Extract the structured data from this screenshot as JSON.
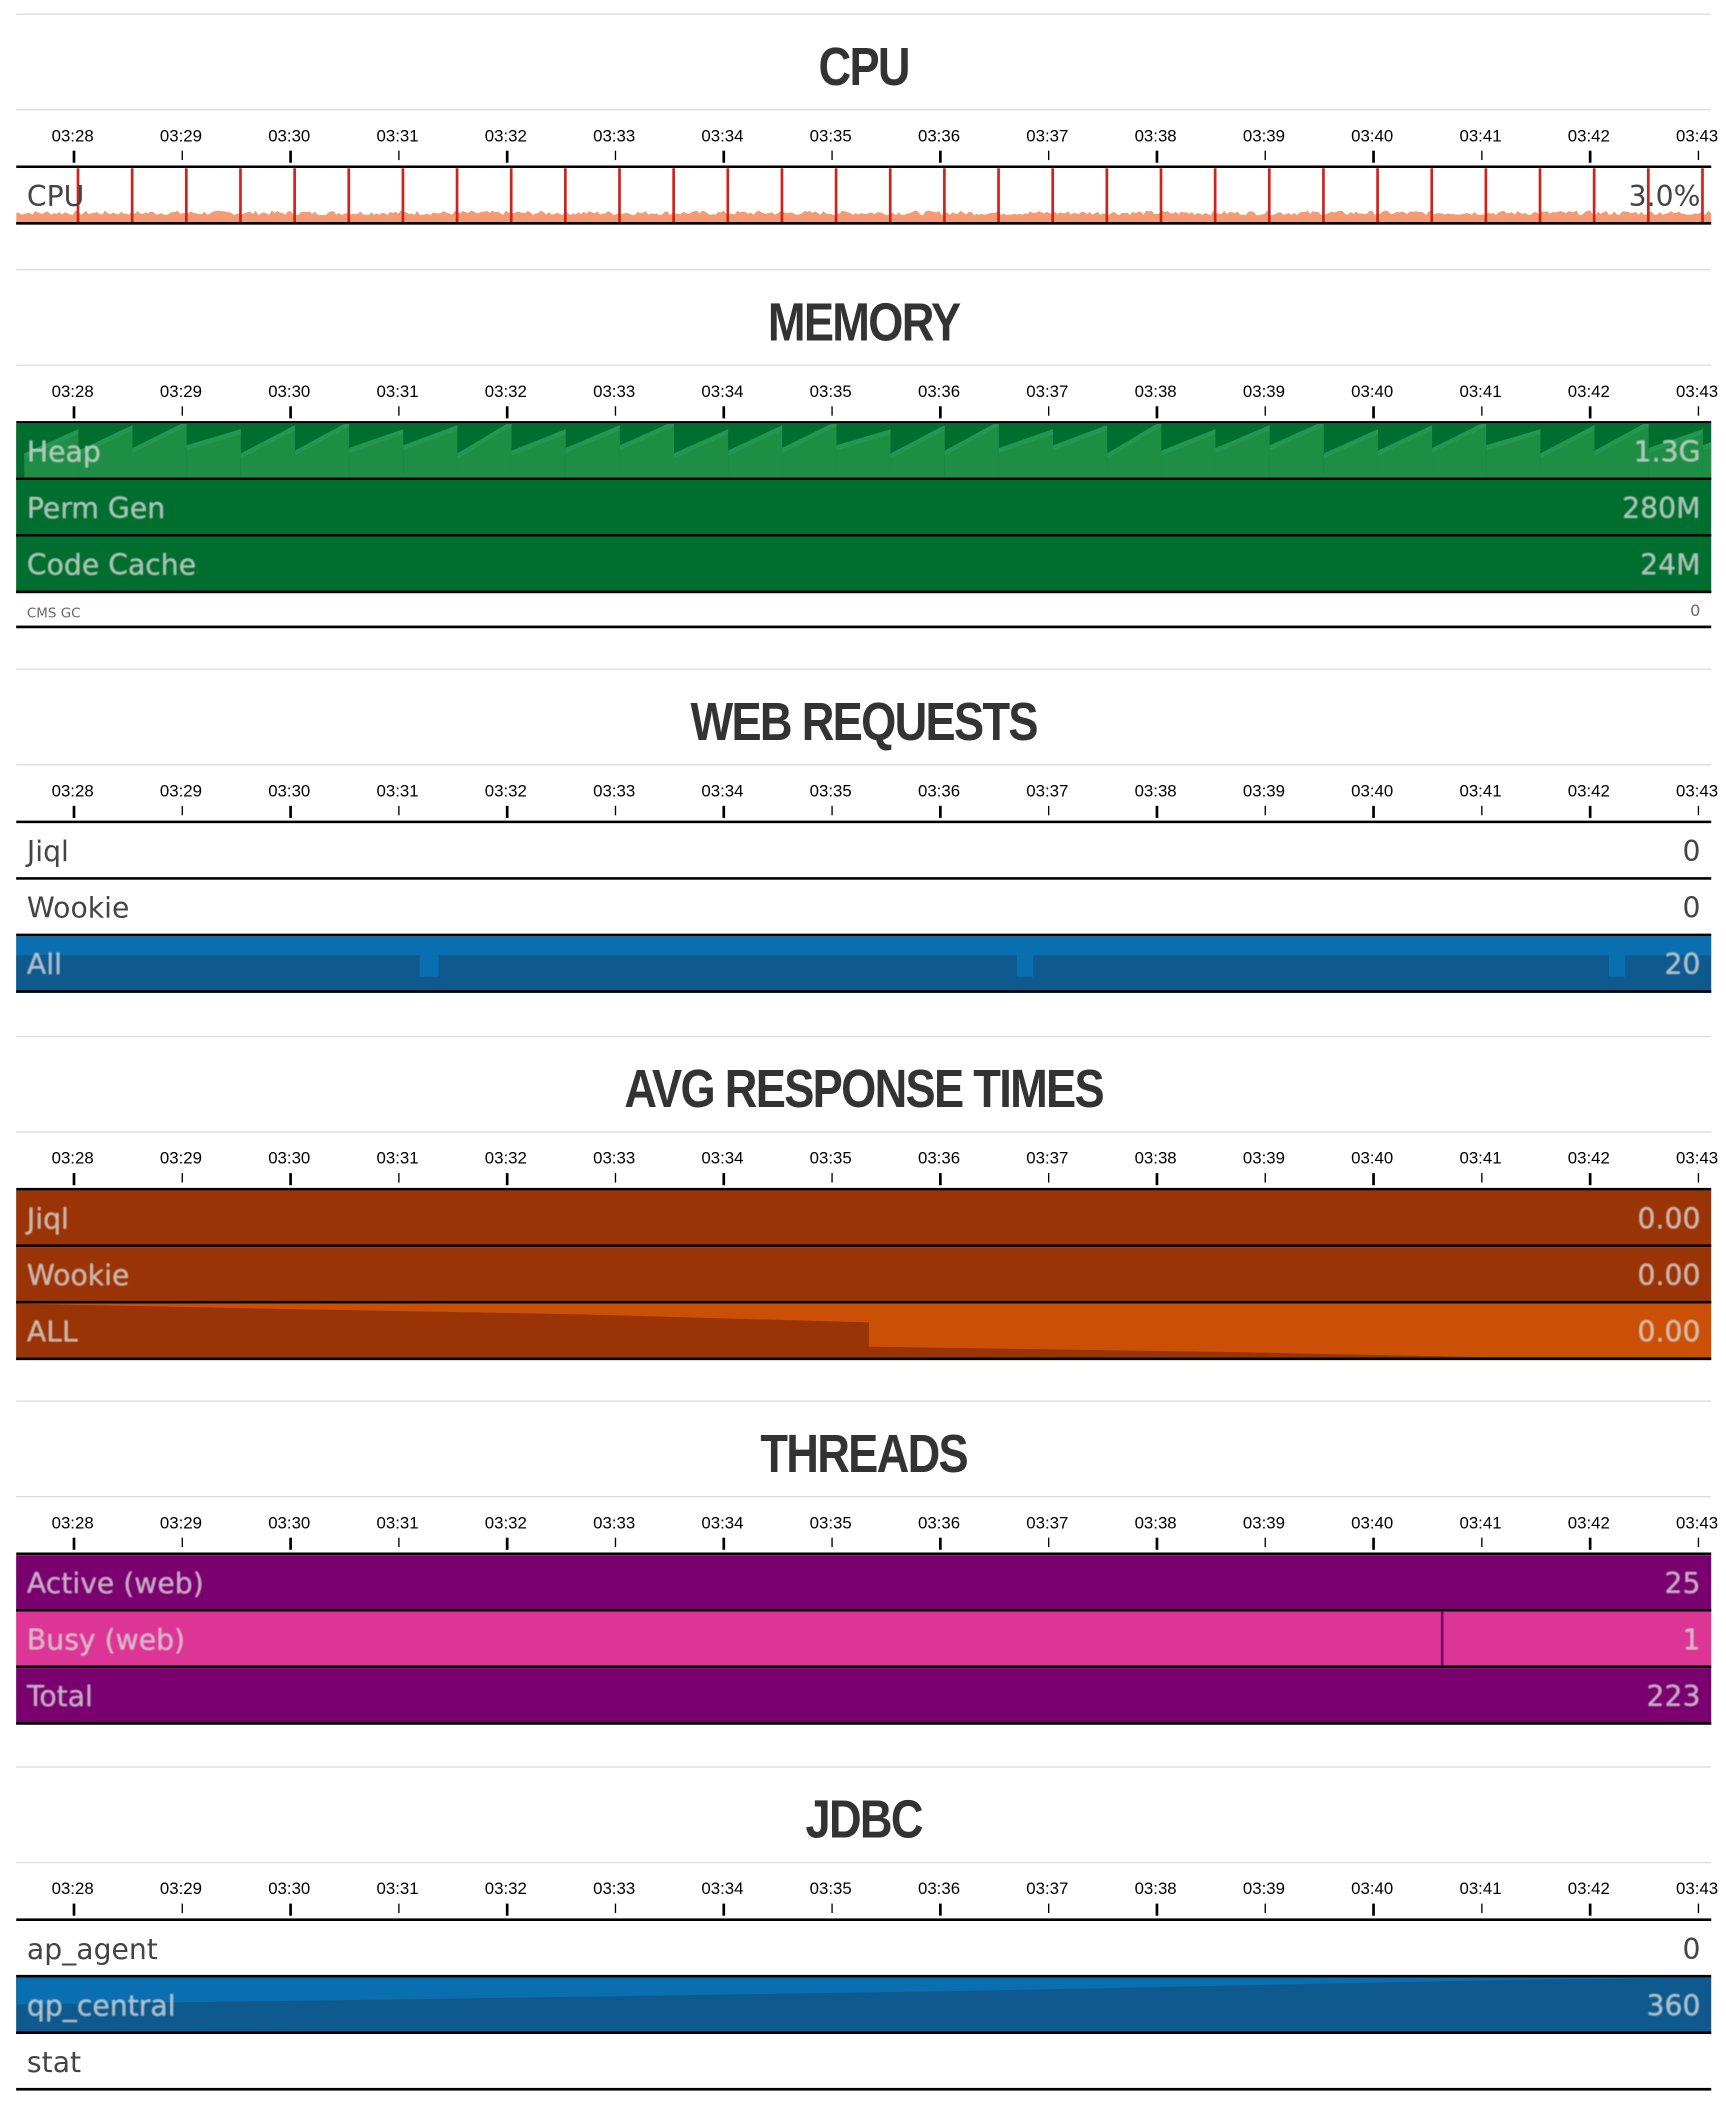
{
  "time_ticks": [
    "03:28",
    "03:29",
    "03:30",
    "03:31",
    "03:32",
    "03:33",
    "03:34",
    "03:35",
    "03:36",
    "03:37",
    "03:38",
    "03:39",
    "03:40",
    "03:41",
    "03:42",
    "03:43"
  ],
  "colors": {
    "cpu_line": "#f08a5d",
    "cpu_spike": "#d0221b",
    "memory_dark": "#006e2e",
    "memory_mid": "#1f8e45",
    "memory_light": "#32a862",
    "requests_dark": "#0e5a8e",
    "requests_light": "#0a6fb0",
    "response_dark": "#9a3306",
    "response_light": "#cc4f06",
    "threads_purple": "#7a0070",
    "threads_pink": "#dc3595",
    "jdbc_dark": "#0e5a8e",
    "jdbc_light": "#0a6fb0"
  },
  "sections": {
    "cpu": {
      "title": "CPU",
      "rows": [
        {
          "label": "CPU",
          "value": "3.0%",
          "fill_fraction": 0.03
        }
      ]
    },
    "memory": {
      "title": "MEMORY",
      "rows": [
        {
          "label": "Heap",
          "value": "1.3G"
        },
        {
          "label": "Perm Gen",
          "value": "280M"
        },
        {
          "label": "Code Cache",
          "value": "24M"
        },
        {
          "label": "CMS GC",
          "value": "0"
        }
      ]
    },
    "web_requests": {
      "title": "WEB REQUESTS",
      "rows": [
        {
          "label": "Jiql",
          "value": "0"
        },
        {
          "label": "Wookie",
          "value": "0"
        },
        {
          "label": "All",
          "value": "20"
        }
      ]
    },
    "avg_response_times": {
      "title": "AVG RESPONSE TIMES",
      "rows": [
        {
          "label": "Jiql",
          "value": "0.00"
        },
        {
          "label": "Wookie",
          "value": "0.00"
        },
        {
          "label": "ALL",
          "value": "0.00"
        }
      ]
    },
    "threads": {
      "title": "THREADS",
      "rows": [
        {
          "label": "Active (web)",
          "value": "25"
        },
        {
          "label": "Busy (web)",
          "value": "1"
        },
        {
          "label": "Total",
          "value": "223"
        }
      ]
    },
    "jdbc": {
      "title": "JDBC",
      "rows": [
        {
          "label": "ap_agent",
          "value": "0"
        },
        {
          "label": "qp_central",
          "value": "360"
        },
        {
          "label": "stat",
          "value": ""
        }
      ]
    }
  }
}
